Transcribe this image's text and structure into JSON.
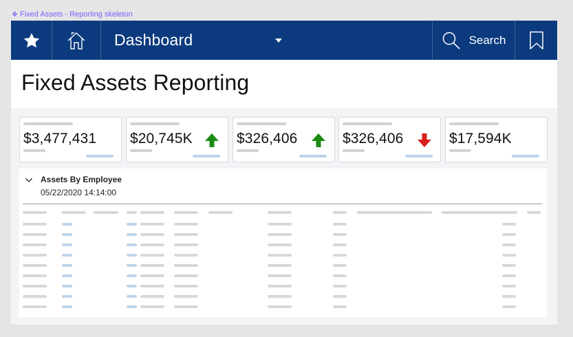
{
  "frame": {
    "label": "Fixed Assets - Reporting skeleton",
    "label_color": "#7b61ff"
  },
  "topbar": {
    "bg": "#0b3a7e",
    "favorite_icon": "star-icon",
    "home_icon": "home-icon",
    "dashboard_label": "Dashboard",
    "dropdown_icon": "caret-down-icon",
    "search_icon": "search-icon",
    "search_label": "Search",
    "bookmark_icon": "bookmark-icon"
  },
  "page": {
    "title": "Fixed Assets Reporting"
  },
  "kpis": [
    {
      "value": "$3,477,431",
      "trend": "none"
    },
    {
      "value": "$20,745K",
      "trend": "up"
    },
    {
      "value": "$326,406",
      "trend": "up"
    },
    {
      "value": "$326,406",
      "trend": "down"
    },
    {
      "value": "$17,594K",
      "trend": "none"
    }
  ],
  "colors": {
    "up": "#1a8a12",
    "down": "#d61f1f"
  },
  "panel": {
    "collapse_icon": "chevron-down-icon",
    "title": "Assets By Employee",
    "timestamp": "05/22/2020 14:14:00",
    "header_skeleton_columns": 13,
    "skeleton_rows": 9
  }
}
